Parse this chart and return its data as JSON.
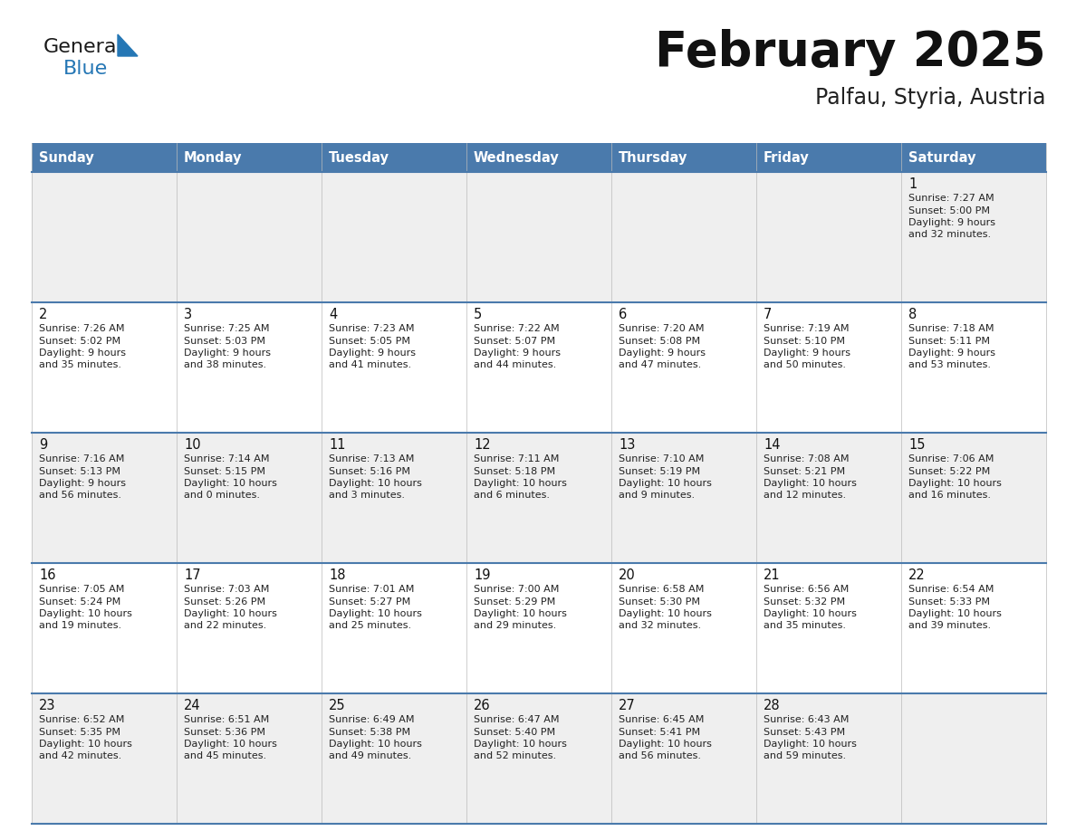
{
  "title": "February 2025",
  "subtitle": "Palfau, Styria, Austria",
  "days_of_week": [
    "Sunday",
    "Monday",
    "Tuesday",
    "Wednesday",
    "Thursday",
    "Friday",
    "Saturday"
  ],
  "header_bg": "#4a7aac",
  "header_text": "#FFFFFF",
  "row_bg_odd": "#efefef",
  "row_bg_even": "#FFFFFF",
  "cell_text_color": "#222222",
  "day_num_color": "#111111",
  "border_color": "#4a7aac",
  "title_color": "#111111",
  "subtitle_color": "#222222",
  "general_text_color": "#1a1a1a",
  "general_blue_color": "#2577B5",
  "logo_triangle_color": "#2577B5",
  "calendar_data": [
    [
      null,
      null,
      null,
      null,
      null,
      null,
      {
        "day": 1,
        "sunrise": "7:27 AM",
        "sunset": "5:00 PM",
        "daylight": "9 hours and 32 minutes."
      }
    ],
    [
      {
        "day": 2,
        "sunrise": "7:26 AM",
        "sunset": "5:02 PM",
        "daylight": "9 hours and 35 minutes."
      },
      {
        "day": 3,
        "sunrise": "7:25 AM",
        "sunset": "5:03 PM",
        "daylight": "9 hours and 38 minutes."
      },
      {
        "day": 4,
        "sunrise": "7:23 AM",
        "sunset": "5:05 PM",
        "daylight": "9 hours and 41 minutes."
      },
      {
        "day": 5,
        "sunrise": "7:22 AM",
        "sunset": "5:07 PM",
        "daylight": "9 hours and 44 minutes."
      },
      {
        "day": 6,
        "sunrise": "7:20 AM",
        "sunset": "5:08 PM",
        "daylight": "9 hours and 47 minutes."
      },
      {
        "day": 7,
        "sunrise": "7:19 AM",
        "sunset": "5:10 PM",
        "daylight": "9 hours and 50 minutes."
      },
      {
        "day": 8,
        "sunrise": "7:18 AM",
        "sunset": "5:11 PM",
        "daylight": "9 hours and 53 minutes."
      }
    ],
    [
      {
        "day": 9,
        "sunrise": "7:16 AM",
        "sunset": "5:13 PM",
        "daylight": "9 hours and 56 minutes."
      },
      {
        "day": 10,
        "sunrise": "7:14 AM",
        "sunset": "5:15 PM",
        "daylight": "10 hours and 0 minutes."
      },
      {
        "day": 11,
        "sunrise": "7:13 AM",
        "sunset": "5:16 PM",
        "daylight": "10 hours and 3 minutes."
      },
      {
        "day": 12,
        "sunrise": "7:11 AM",
        "sunset": "5:18 PM",
        "daylight": "10 hours and 6 minutes."
      },
      {
        "day": 13,
        "sunrise": "7:10 AM",
        "sunset": "5:19 PM",
        "daylight": "10 hours and 9 minutes."
      },
      {
        "day": 14,
        "sunrise": "7:08 AM",
        "sunset": "5:21 PM",
        "daylight": "10 hours and 12 minutes."
      },
      {
        "day": 15,
        "sunrise": "7:06 AM",
        "sunset": "5:22 PM",
        "daylight": "10 hours and 16 minutes."
      }
    ],
    [
      {
        "day": 16,
        "sunrise": "7:05 AM",
        "sunset": "5:24 PM",
        "daylight": "10 hours and 19 minutes."
      },
      {
        "day": 17,
        "sunrise": "7:03 AM",
        "sunset": "5:26 PM",
        "daylight": "10 hours and 22 minutes."
      },
      {
        "day": 18,
        "sunrise": "7:01 AM",
        "sunset": "5:27 PM",
        "daylight": "10 hours and 25 minutes."
      },
      {
        "day": 19,
        "sunrise": "7:00 AM",
        "sunset": "5:29 PM",
        "daylight": "10 hours and 29 minutes."
      },
      {
        "day": 20,
        "sunrise": "6:58 AM",
        "sunset": "5:30 PM",
        "daylight": "10 hours and 32 minutes."
      },
      {
        "day": 21,
        "sunrise": "6:56 AM",
        "sunset": "5:32 PM",
        "daylight": "10 hours and 35 minutes."
      },
      {
        "day": 22,
        "sunrise": "6:54 AM",
        "sunset": "5:33 PM",
        "daylight": "10 hours and 39 minutes."
      }
    ],
    [
      {
        "day": 23,
        "sunrise": "6:52 AM",
        "sunset": "5:35 PM",
        "daylight": "10 hours and 42 minutes."
      },
      {
        "day": 24,
        "sunrise": "6:51 AM",
        "sunset": "5:36 PM",
        "daylight": "10 hours and 45 minutes."
      },
      {
        "day": 25,
        "sunrise": "6:49 AM",
        "sunset": "5:38 PM",
        "daylight": "10 hours and 49 minutes."
      },
      {
        "day": 26,
        "sunrise": "6:47 AM",
        "sunset": "5:40 PM",
        "daylight": "10 hours and 52 minutes."
      },
      {
        "day": 27,
        "sunrise": "6:45 AM",
        "sunset": "5:41 PM",
        "daylight": "10 hours and 56 minutes."
      },
      {
        "day": 28,
        "sunrise": "6:43 AM",
        "sunset": "5:43 PM",
        "daylight": "10 hours and 59 minutes."
      },
      null
    ]
  ]
}
